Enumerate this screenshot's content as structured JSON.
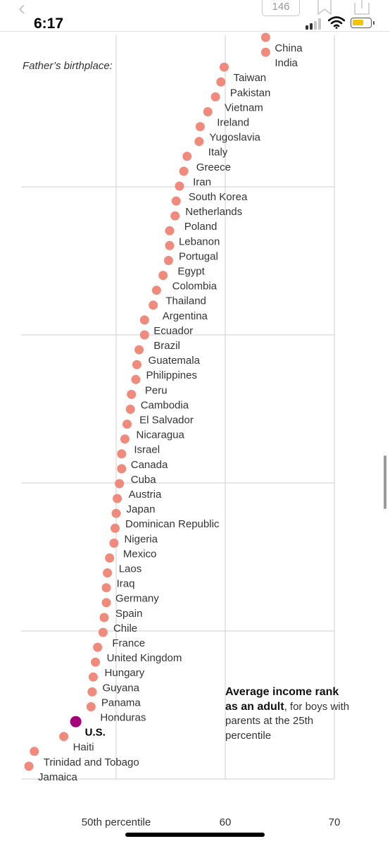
{
  "status_bar": {
    "time": "6:17",
    "comment_count": "146",
    "battery_color": "#f5c400"
  },
  "chart_data": {
    "type": "scatter",
    "side_label": "Father’s birthplace:",
    "annotation": {
      "bold": "Average income rank as an adult",
      "rest": ", for boys with parents at the 25th percentile"
    },
    "xlim": [
      41,
      72
    ],
    "x_ticks": [
      {
        "value": 50,
        "label": "50th percentile"
      },
      {
        "value": 60,
        "label": "60"
      },
      {
        "value": 70,
        "label": "70"
      }
    ],
    "grid": true,
    "point_color": "#f08a7c",
    "highlight_color": "#a3007a",
    "points": [
      {
        "label": "China",
        "value": 63.7
      },
      {
        "label": "India",
        "value": 63.7
      },
      {
        "label": "Taiwan",
        "value": 59.9
      },
      {
        "label": "Pakistan",
        "value": 59.6
      },
      {
        "label": "Vietnam",
        "value": 59.1
      },
      {
        "label": "Ireland",
        "value": 58.4
      },
      {
        "label": "Yugoslavia",
        "value": 57.7
      },
      {
        "label": "Italy",
        "value": 57.6
      },
      {
        "label": "Greece",
        "value": 56.5
      },
      {
        "label": "Iran",
        "value": 56.2
      },
      {
        "label": "South Korea",
        "value": 55.8
      },
      {
        "label": "Netherlands",
        "value": 55.5
      },
      {
        "label": "Poland",
        "value": 55.4
      },
      {
        "label": "Lebanon",
        "value": 54.9
      },
      {
        "label": "Portugal",
        "value": 54.9
      },
      {
        "label": "Egypt",
        "value": 54.8
      },
      {
        "label": "Colombia",
        "value": 54.3
      },
      {
        "label": "Thailand",
        "value": 53.7
      },
      {
        "label": "Argentina",
        "value": 53.4
      },
      {
        "label": "Ecuador",
        "value": 52.6
      },
      {
        "label": "Brazil",
        "value": 52.6
      },
      {
        "label": "Guatemala",
        "value": 52.1
      },
      {
        "label": "Philippines",
        "value": 51.9
      },
      {
        "label": "Peru",
        "value": 51.8
      },
      {
        "label": "Cambodia",
        "value": 51.4
      },
      {
        "label": "El Salvador",
        "value": 51.3
      },
      {
        "label": "Nicaragua",
        "value": 51.0
      },
      {
        "label": "Israel",
        "value": 50.8
      },
      {
        "label": "Canada",
        "value": 50.5
      },
      {
        "label": "Cuba",
        "value": 50.5
      },
      {
        "label": "Austria",
        "value": 50.3
      },
      {
        "label": "Japan",
        "value": 50.1
      },
      {
        "label": "Dominican Republic",
        "value": 50.0
      },
      {
        "label": "Nigeria",
        "value": 49.9
      },
      {
        "label": "Mexico",
        "value": 49.8
      },
      {
        "label": "Laos",
        "value": 49.4
      },
      {
        "label": "Iraq",
        "value": 49.2
      },
      {
        "label": "Germany",
        "value": 49.1
      },
      {
        "label": "Spain",
        "value": 49.1
      },
      {
        "label": "Chile",
        "value": 48.9
      },
      {
        "label": "France",
        "value": 48.8
      },
      {
        "label": "United Kingdom",
        "value": 48.3
      },
      {
        "label": "Hungary",
        "value": 48.1
      },
      {
        "label": "Guyana",
        "value": 47.9
      },
      {
        "label": "Panama",
        "value": 47.8
      },
      {
        "label": "Honduras",
        "value": 47.7
      },
      {
        "label": "U.S.",
        "value": 46.3,
        "highlight": true
      },
      {
        "label": "Haiti",
        "value": 45.2
      },
      {
        "label": "Trinidad and Tobago",
        "value": 42.5
      },
      {
        "label": "Jamaica",
        "value": 42.0
      }
    ]
  }
}
